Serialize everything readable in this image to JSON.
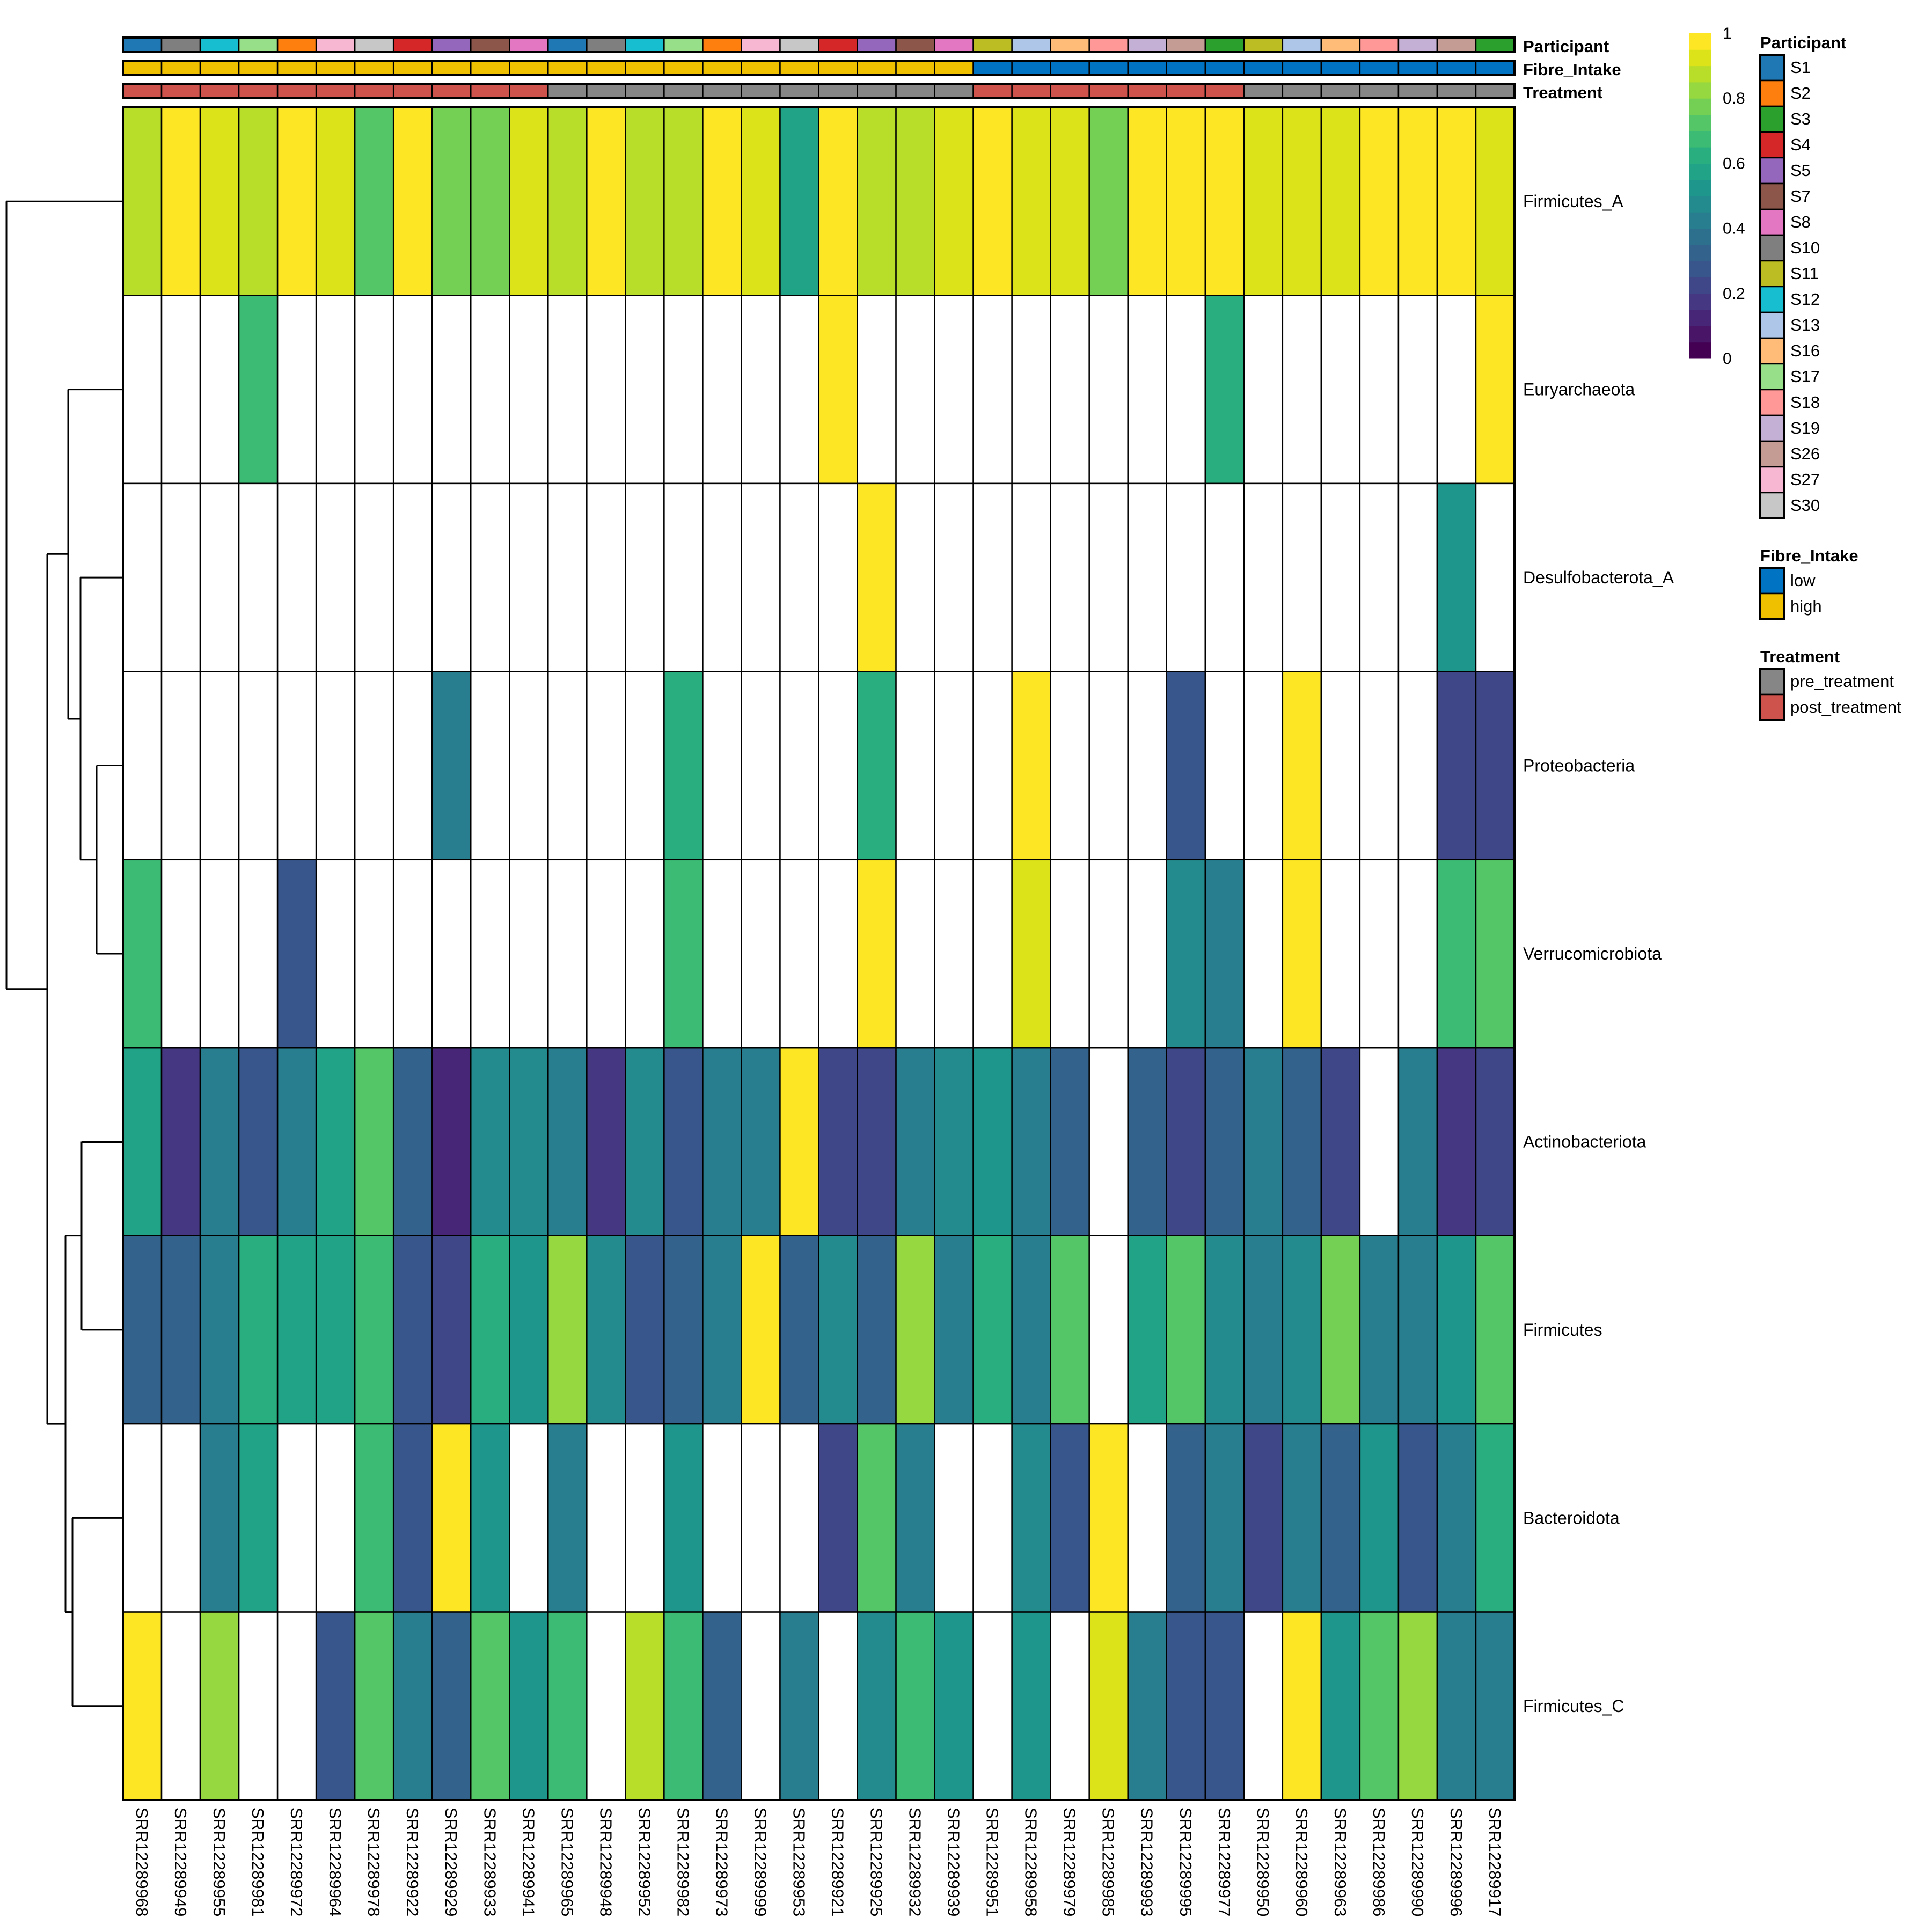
{
  "chart_data": {
    "type": "heatmap",
    "title": "",
    "value_range": [
      0,
      1
    ],
    "missing_value_color": "#FFFFFF",
    "colorbar": {
      "ticks": [
        "0",
        "0.2",
        "0.4",
        "0.6",
        "0.8",
        "1"
      ],
      "tick_values": [
        0,
        0.2,
        0.4,
        0.6,
        0.8,
        1
      ],
      "colormap": "viridis",
      "steps": 20
    },
    "columns": [
      "SRR12289968",
      "SRR12289949",
      "SRR12289955",
      "SRR12289981",
      "SRR12289972",
      "SRR12289964",
      "SRR12289978",
      "SRR12289922",
      "SRR12289929",
      "SRR12289933",
      "SRR12289941",
      "SRR12289965",
      "SRR12289948",
      "SRR12289952",
      "SRR12289982",
      "SRR12289973",
      "SRR12289999",
      "SRR12289953",
      "SRR12289921",
      "SRR12289925",
      "SRR12289932",
      "SRR12289939",
      "SRR12289951",
      "SRR12289958",
      "SRR12289979",
      "SRR12289985",
      "SRR12289993",
      "SRR12289995",
      "SRR12289977",
      "SRR12289950",
      "SRR12289960",
      "SRR12289963",
      "SRR12289986",
      "SRR12289990",
      "SRR12289996",
      "SRR12289917"
    ],
    "rows": [
      "Firmicutes_A",
      "Euryarchaeota",
      "Desulfobacterota_A",
      "Proteobacteria",
      "Verrucomicrobiota",
      "Actinobacteriota",
      "Firmicutes",
      "Bacteroidota",
      "Firmicutes_C"
    ],
    "values": [
      [
        0.9,
        1.0,
        0.95,
        0.9,
        1.0,
        0.95,
        0.75,
        1.0,
        0.8,
        0.8,
        0.95,
        0.9,
        1.0,
        0.9,
        0.9,
        1.0,
        0.95,
        0.6,
        1.0,
        0.9,
        0.9,
        0.95,
        1.0,
        0.95,
        0.95,
        0.8,
        1.0,
        1.0,
        1.0,
        0.95,
        0.95,
        0.95,
        1.0,
        1.0,
        1.0,
        0.95
      ],
      [
        null,
        null,
        null,
        0.7,
        null,
        null,
        null,
        null,
        null,
        null,
        null,
        null,
        null,
        null,
        null,
        null,
        null,
        null,
        1.0,
        null,
        null,
        null,
        null,
        null,
        null,
        null,
        null,
        null,
        0.65,
        null,
        null,
        null,
        null,
        null,
        null,
        1.0
      ],
      [
        null,
        null,
        null,
        null,
        null,
        null,
        null,
        null,
        null,
        null,
        null,
        null,
        null,
        null,
        null,
        null,
        null,
        null,
        null,
        1.0,
        null,
        null,
        null,
        null,
        null,
        null,
        null,
        null,
        null,
        null,
        null,
        null,
        null,
        null,
        0.55,
        null
      ],
      [
        null,
        null,
        null,
        null,
        null,
        null,
        null,
        null,
        0.4,
        null,
        null,
        null,
        null,
        null,
        0.65,
        null,
        null,
        null,
        null,
        0.65,
        null,
        null,
        null,
        1.0,
        null,
        null,
        null,
        0.25,
        null,
        null,
        1.0,
        null,
        null,
        null,
        0.2,
        0.2
      ],
      [
        0.7,
        null,
        null,
        null,
        0.25,
        null,
        null,
        null,
        null,
        null,
        null,
        null,
        null,
        null,
        0.7,
        null,
        null,
        null,
        null,
        1.0,
        null,
        null,
        null,
        0.95,
        null,
        null,
        null,
        0.45,
        0.4,
        null,
        1.0,
        null,
        null,
        null,
        0.7,
        0.75
      ],
      [
        0.6,
        0.15,
        0.4,
        0.25,
        0.4,
        0.6,
        0.75,
        0.3,
        0.1,
        0.45,
        0.45,
        0.4,
        0.15,
        0.45,
        0.25,
        0.4,
        0.4,
        1.0,
        0.2,
        0.2,
        0.4,
        0.45,
        0.55,
        0.4,
        0.3,
        null,
        0.3,
        0.2,
        0.3,
        0.4,
        0.3,
        0.2,
        null,
        0.4,
        0.15,
        0.2
      ],
      [
        0.3,
        0.3,
        0.4,
        0.65,
        0.6,
        0.6,
        0.7,
        0.25,
        0.2,
        0.65,
        0.55,
        0.85,
        0.45,
        0.25,
        0.3,
        0.4,
        1.0,
        0.3,
        0.45,
        0.3,
        0.85,
        0.4,
        0.65,
        0.4,
        0.75,
        null,
        0.6,
        0.75,
        0.45,
        0.4,
        0.45,
        0.8,
        0.4,
        0.4,
        0.55,
        0.75
      ],
      [
        null,
        null,
        0.4,
        0.6,
        null,
        null,
        0.7,
        0.25,
        1.0,
        0.55,
        null,
        0.4,
        null,
        null,
        0.55,
        null,
        null,
        null,
        0.2,
        0.75,
        0.4,
        null,
        null,
        0.45,
        0.25,
        1.0,
        null,
        0.3,
        0.4,
        0.2,
        0.4,
        0.3,
        0.55,
        0.25,
        0.4,
        0.65
      ],
      [
        1.0,
        null,
        0.85,
        null,
        null,
        0.25,
        0.75,
        0.4,
        0.3,
        0.75,
        0.55,
        0.7,
        null,
        0.9,
        0.7,
        0.3,
        null,
        0.4,
        null,
        0.45,
        0.7,
        0.55,
        null,
        0.55,
        null,
        0.95,
        0.4,
        0.25,
        0.25,
        null,
        1.0,
        0.55,
        0.75,
        0.85,
        0.4,
        0.4
      ]
    ],
    "annotations": {
      "labels": [
        "Participant",
        "Fibre_Intake",
        "Treatment"
      ],
      "Participant": [
        "S1",
        "S10",
        "S12",
        "S17",
        "S2",
        "S27",
        "S30",
        "S4",
        "S5",
        "S7",
        "S8",
        "S1",
        "S10",
        "S12",
        "S17",
        "S2",
        "S27",
        "S30",
        "S4",
        "S5",
        "S7",
        "S8",
        "S11",
        "S13",
        "S16",
        "S18",
        "S19",
        "S26",
        "S3",
        "S11",
        "S13",
        "S16",
        "S18",
        "S19",
        "S26",
        "S3"
      ],
      "Fibre_Intake": [
        "high",
        "high",
        "high",
        "high",
        "high",
        "high",
        "high",
        "high",
        "high",
        "high",
        "high",
        "high",
        "high",
        "high",
        "high",
        "high",
        "high",
        "high",
        "high",
        "high",
        "high",
        "high",
        "low",
        "low",
        "low",
        "low",
        "low",
        "low",
        "low",
        "low",
        "low",
        "low",
        "low",
        "low",
        "low",
        "low"
      ],
      "Treatment": [
        "post_treatment",
        "post_treatment",
        "post_treatment",
        "post_treatment",
        "post_treatment",
        "post_treatment",
        "post_treatment",
        "post_treatment",
        "post_treatment",
        "post_treatment",
        "post_treatment",
        "pre_treatment",
        "pre_treatment",
        "pre_treatment",
        "pre_treatment",
        "pre_treatment",
        "pre_treatment",
        "pre_treatment",
        "pre_treatment",
        "pre_treatment",
        "pre_treatment",
        "pre_treatment",
        "post_treatment",
        "post_treatment",
        "post_treatment",
        "post_treatment",
        "post_treatment",
        "post_treatment",
        "post_treatment",
        "pre_treatment",
        "pre_treatment",
        "pre_treatment",
        "pre_treatment",
        "pre_treatment",
        "pre_treatment",
        "pre_treatment"
      ]
    },
    "legends": [
      {
        "title": "Participant",
        "entries": [
          {
            "label": "S1",
            "color": "#1F77B4"
          },
          {
            "label": "S2",
            "color": "#FF7F0E"
          },
          {
            "label": "S3",
            "color": "#2CA02C"
          },
          {
            "label": "S4",
            "color": "#D62728"
          },
          {
            "label": "S5",
            "color": "#9467BD"
          },
          {
            "label": "S7",
            "color": "#8C564B"
          },
          {
            "label": "S8",
            "color": "#E377C2"
          },
          {
            "label": "S10",
            "color": "#7F7F7F"
          },
          {
            "label": "S11",
            "color": "#BCBD22"
          },
          {
            "label": "S12",
            "color": "#17BECF"
          },
          {
            "label": "S13",
            "color": "#AEC7E8"
          },
          {
            "label": "S16",
            "color": "#FFBB78"
          },
          {
            "label": "S17",
            "color": "#98DF8A"
          },
          {
            "label": "S18",
            "color": "#FF9896"
          },
          {
            "label": "S19",
            "color": "#C5B0D5"
          },
          {
            "label": "S26",
            "color": "#C49C94"
          },
          {
            "label": "S27",
            "color": "#F7B6D2"
          },
          {
            "label": "S30",
            "color": "#C7C7C7"
          }
        ]
      },
      {
        "title": "Fibre_Intake",
        "entries": [
          {
            "label": "low",
            "color": "#0073C2"
          },
          {
            "label": "high",
            "color": "#EFC000"
          }
        ]
      },
      {
        "title": "Treatment",
        "entries": [
          {
            "label": "pre_treatment",
            "color": "#868686"
          },
          {
            "label": "post_treatment",
            "color": "#CD534C"
          }
        ]
      }
    ],
    "row_dendrogram": {
      "merges": [
        [
          "Proteobacteria",
          "Verrucomicrobiota"
        ],
        [
          "Desulfobacterota_A",
          "[Proteobacteria,Verrucomicrobiota]"
        ],
        [
          "Euryarchaeota",
          "[Desulfobacterota_A,...]"
        ],
        [
          "Actinobacteriota",
          "Firmicutes"
        ],
        [
          "Bacteroidota",
          "Firmicutes_C"
        ],
        [
          "[Actinobacteriota,Firmicutes]",
          "[Bacteroidota,Firmicutes_C]"
        ],
        [
          "[Euryarchaeota,...]",
          "[Actinobacteriota,...]"
        ],
        [
          "Firmicutes_A",
          "[rest]"
        ]
      ]
    }
  }
}
